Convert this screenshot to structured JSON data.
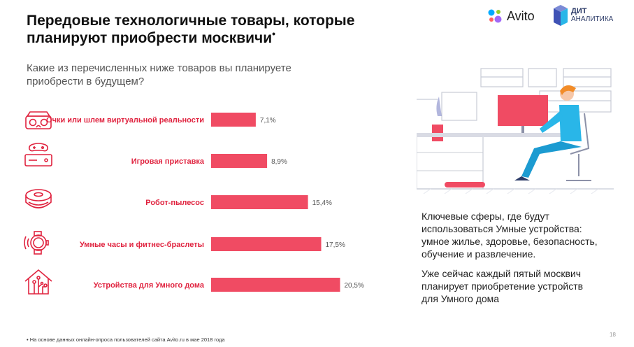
{
  "header": {
    "title_line1": "Передовые технологичные товары, которые",
    "title_line2": "планируют приобрести москвичи",
    "title_mark": "•",
    "question_line1": "Какие из перечисленных ниже товаров вы планируете",
    "question_line2": "приобрести в будущем?"
  },
  "logos": {
    "avito": "Avito",
    "dit_line1": "ДИТ",
    "dit_line2": "АНАЛИТИКА"
  },
  "colors": {
    "bar": "#f04b63",
    "label": "#e0233f",
    "value": "#555555",
    "icon": "#e0233f"
  },
  "chart_data": {
    "type": "bar",
    "orientation": "horizontal",
    "categories": [
      "Очки или шлем виртуальной реальности",
      "Игровая приставка",
      "Робот-пылесос",
      "Умные часы и фитнес-браслеты",
      "Устройства для Умного дома"
    ],
    "values": [
      7.1,
      8.9,
      15.4,
      17.5,
      20.5
    ],
    "value_labels": [
      "7,1%",
      "8,9%",
      "15,4%",
      "17,5%",
      "20,5%"
    ],
    "unit": "%",
    "xlim": [
      0,
      25
    ],
    "icons": [
      "vr-headset-icon",
      "game-console-icon",
      "robot-vacuum-icon",
      "smartwatch-icon",
      "smart-home-icon"
    ]
  },
  "info": {
    "p1_lines": [
      "Ключевые сферы, где будут",
      "использоваться Умные устройства:",
      "умное жилье, здоровье, безопасность,",
      "обучение и развлечение."
    ],
    "p2_lines": [
      "Уже сейчас каждый пятый москвич",
      "планирует приобретение устройств",
      "для Умного дома"
    ]
  },
  "footer": {
    "note": "• На основе данных онлайн-опроса пользователей сайта Avito.ru в мае 2018 года",
    "page": "18"
  }
}
